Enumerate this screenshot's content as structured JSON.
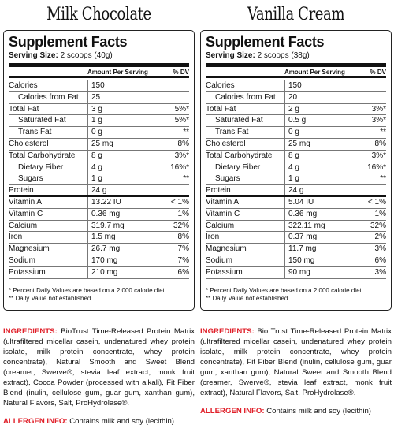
{
  "columns": [
    {
      "flavor": "Milk Chocolate",
      "title": "Supplement Facts",
      "serving_label": "Serving Size:",
      "serving_value": "2 scoops (40g)",
      "header": {
        "amount": "Amount Per Serving",
        "dv": "% DV"
      },
      "rows": [
        {
          "name": "Calories",
          "amount": "150",
          "dv": ""
        },
        {
          "name": "Calories from Fat",
          "amount": "25",
          "dv": ""
        },
        {
          "name": "Total Fat",
          "amount": "3 g",
          "dv": "5%*"
        },
        {
          "name": "Saturated Fat",
          "amount": "1 g",
          "dv": "5%*"
        },
        {
          "name": "Trans Fat",
          "amount": "0 g",
          "dv": "**"
        },
        {
          "name": "Cholesterol",
          "amount": "25 mg",
          "dv": "8%"
        },
        {
          "name": "Total Carbohydrate",
          "amount": "8 g",
          "dv": "3%*"
        },
        {
          "name": "Dietary Fiber",
          "amount": "4 g",
          "dv": "16%*"
        },
        {
          "name": "Sugars",
          "amount": "1 g",
          "dv": "**"
        },
        {
          "name": "Protein",
          "amount": "24 g",
          "dv": ""
        },
        {
          "name": "Vitamin A",
          "amount": "13.22 IU",
          "dv": "< 1%"
        },
        {
          "name": "Vitamin C",
          "amount": "0.36 mg",
          "dv": "1%"
        },
        {
          "name": "Calcium",
          "amount": "319.7 mg",
          "dv": "32%"
        },
        {
          "name": "Iron",
          "amount": "1.5 mg",
          "dv": "8%"
        },
        {
          "name": "Magnesium",
          "amount": "26.7 mg",
          "dv": "7%"
        },
        {
          "name": "Sodium",
          "amount": "170 mg",
          "dv": "7%"
        },
        {
          "name": "Potassium",
          "amount": "210 mg",
          "dv": "6%"
        }
      ],
      "footnote1": "* Percent Daily Values are based on a 2,000 calorie diet.",
      "footnote2": "** Daily Value not established",
      "ingredients_label": "INGREDIENTS:",
      "ingredients_text": " BioTrust Time-Released Protein Matrix (ultrafiltered micellar casein, undenatured whey protein isolate, milk protein concentrate, whey protein concentrate), Natural Smooth and Sweet Blend (creamer, Swerve®, stevia leaf extract, monk fruit extract), Cocoa Powder (processed with alkali), Fit Fiber Blend (inulin, cellulose gum, guar gum, xanthan gum), Natural Flavors, Salt, ProHydrolase®.",
      "allergen_label": "ALLERGEN INFO:",
      "allergen_text": " Contains milk and soy (lecithin)"
    },
    {
      "flavor": "Vanilla Cream",
      "title": "Supplement Facts",
      "serving_label": "Serving Size:",
      "serving_value": "2 scoops (38g)",
      "header": {
        "amount": "Amount Per Serving",
        "dv": "% DV"
      },
      "rows": [
        {
          "name": "Calories",
          "amount": "150",
          "dv": ""
        },
        {
          "name": "Calories from Fat",
          "amount": "20",
          "dv": ""
        },
        {
          "name": "Total Fat",
          "amount": "2 g",
          "dv": "3%*"
        },
        {
          "name": "Saturated Fat",
          "amount": "0.5 g",
          "dv": "3%*"
        },
        {
          "name": "Trans Fat",
          "amount": "0 g",
          "dv": "**"
        },
        {
          "name": "Cholesterol",
          "amount": "25 mg",
          "dv": "8%"
        },
        {
          "name": "Total Carbohydrate",
          "amount": "8 g",
          "dv": "3%*"
        },
        {
          "name": "Dietary Fiber",
          "amount": "4 g",
          "dv": "16%*"
        },
        {
          "name": "Sugars",
          "amount": "1 g",
          "dv": "**"
        },
        {
          "name": "Protein",
          "amount": "24 g",
          "dv": ""
        },
        {
          "name": "Vitamin A",
          "amount": "5.04 IU",
          "dv": "< 1%"
        },
        {
          "name": "Vitamin C",
          "amount": "0.36 mg",
          "dv": "1%"
        },
        {
          "name": "Calcium",
          "amount": "322.11 mg",
          "dv": "32%"
        },
        {
          "name": "Iron",
          "amount": "0.37 mg",
          "dv": "2%"
        },
        {
          "name": "Magnesium",
          "amount": "11.7 mg",
          "dv": "3%"
        },
        {
          "name": "Sodium",
          "amount": "150 mg",
          "dv": "6%"
        },
        {
          "name": "Potassium",
          "amount": "90 mg",
          "dv": "3%"
        }
      ],
      "footnote1": "* Percent Daily Values are based on a 2,000 calorie diet.",
      "footnote2": "** Daily Value not established",
      "ingredients_label": "INGREDIENTS:",
      "ingredients_text": " Bio Trust Time-Released Protein Matrix (ultrafiltered micellar casein, undenatured whey protein isolate, milk protein concentrate, whey protein concentrate), Fit Fiber Blend (inulin, cellulose gum, guar gum, xanthan gum), Natural Sweet and Smooth Blend (creamer, Swerve®, stevia leaf extract, monk fruit extract), Natural Flavors, Salt, ProHydrolase®.",
      "allergen_label": "ALLERGEN INFO:",
      "allergen_text": " Contains milk and soy (lecithin)"
    }
  ]
}
